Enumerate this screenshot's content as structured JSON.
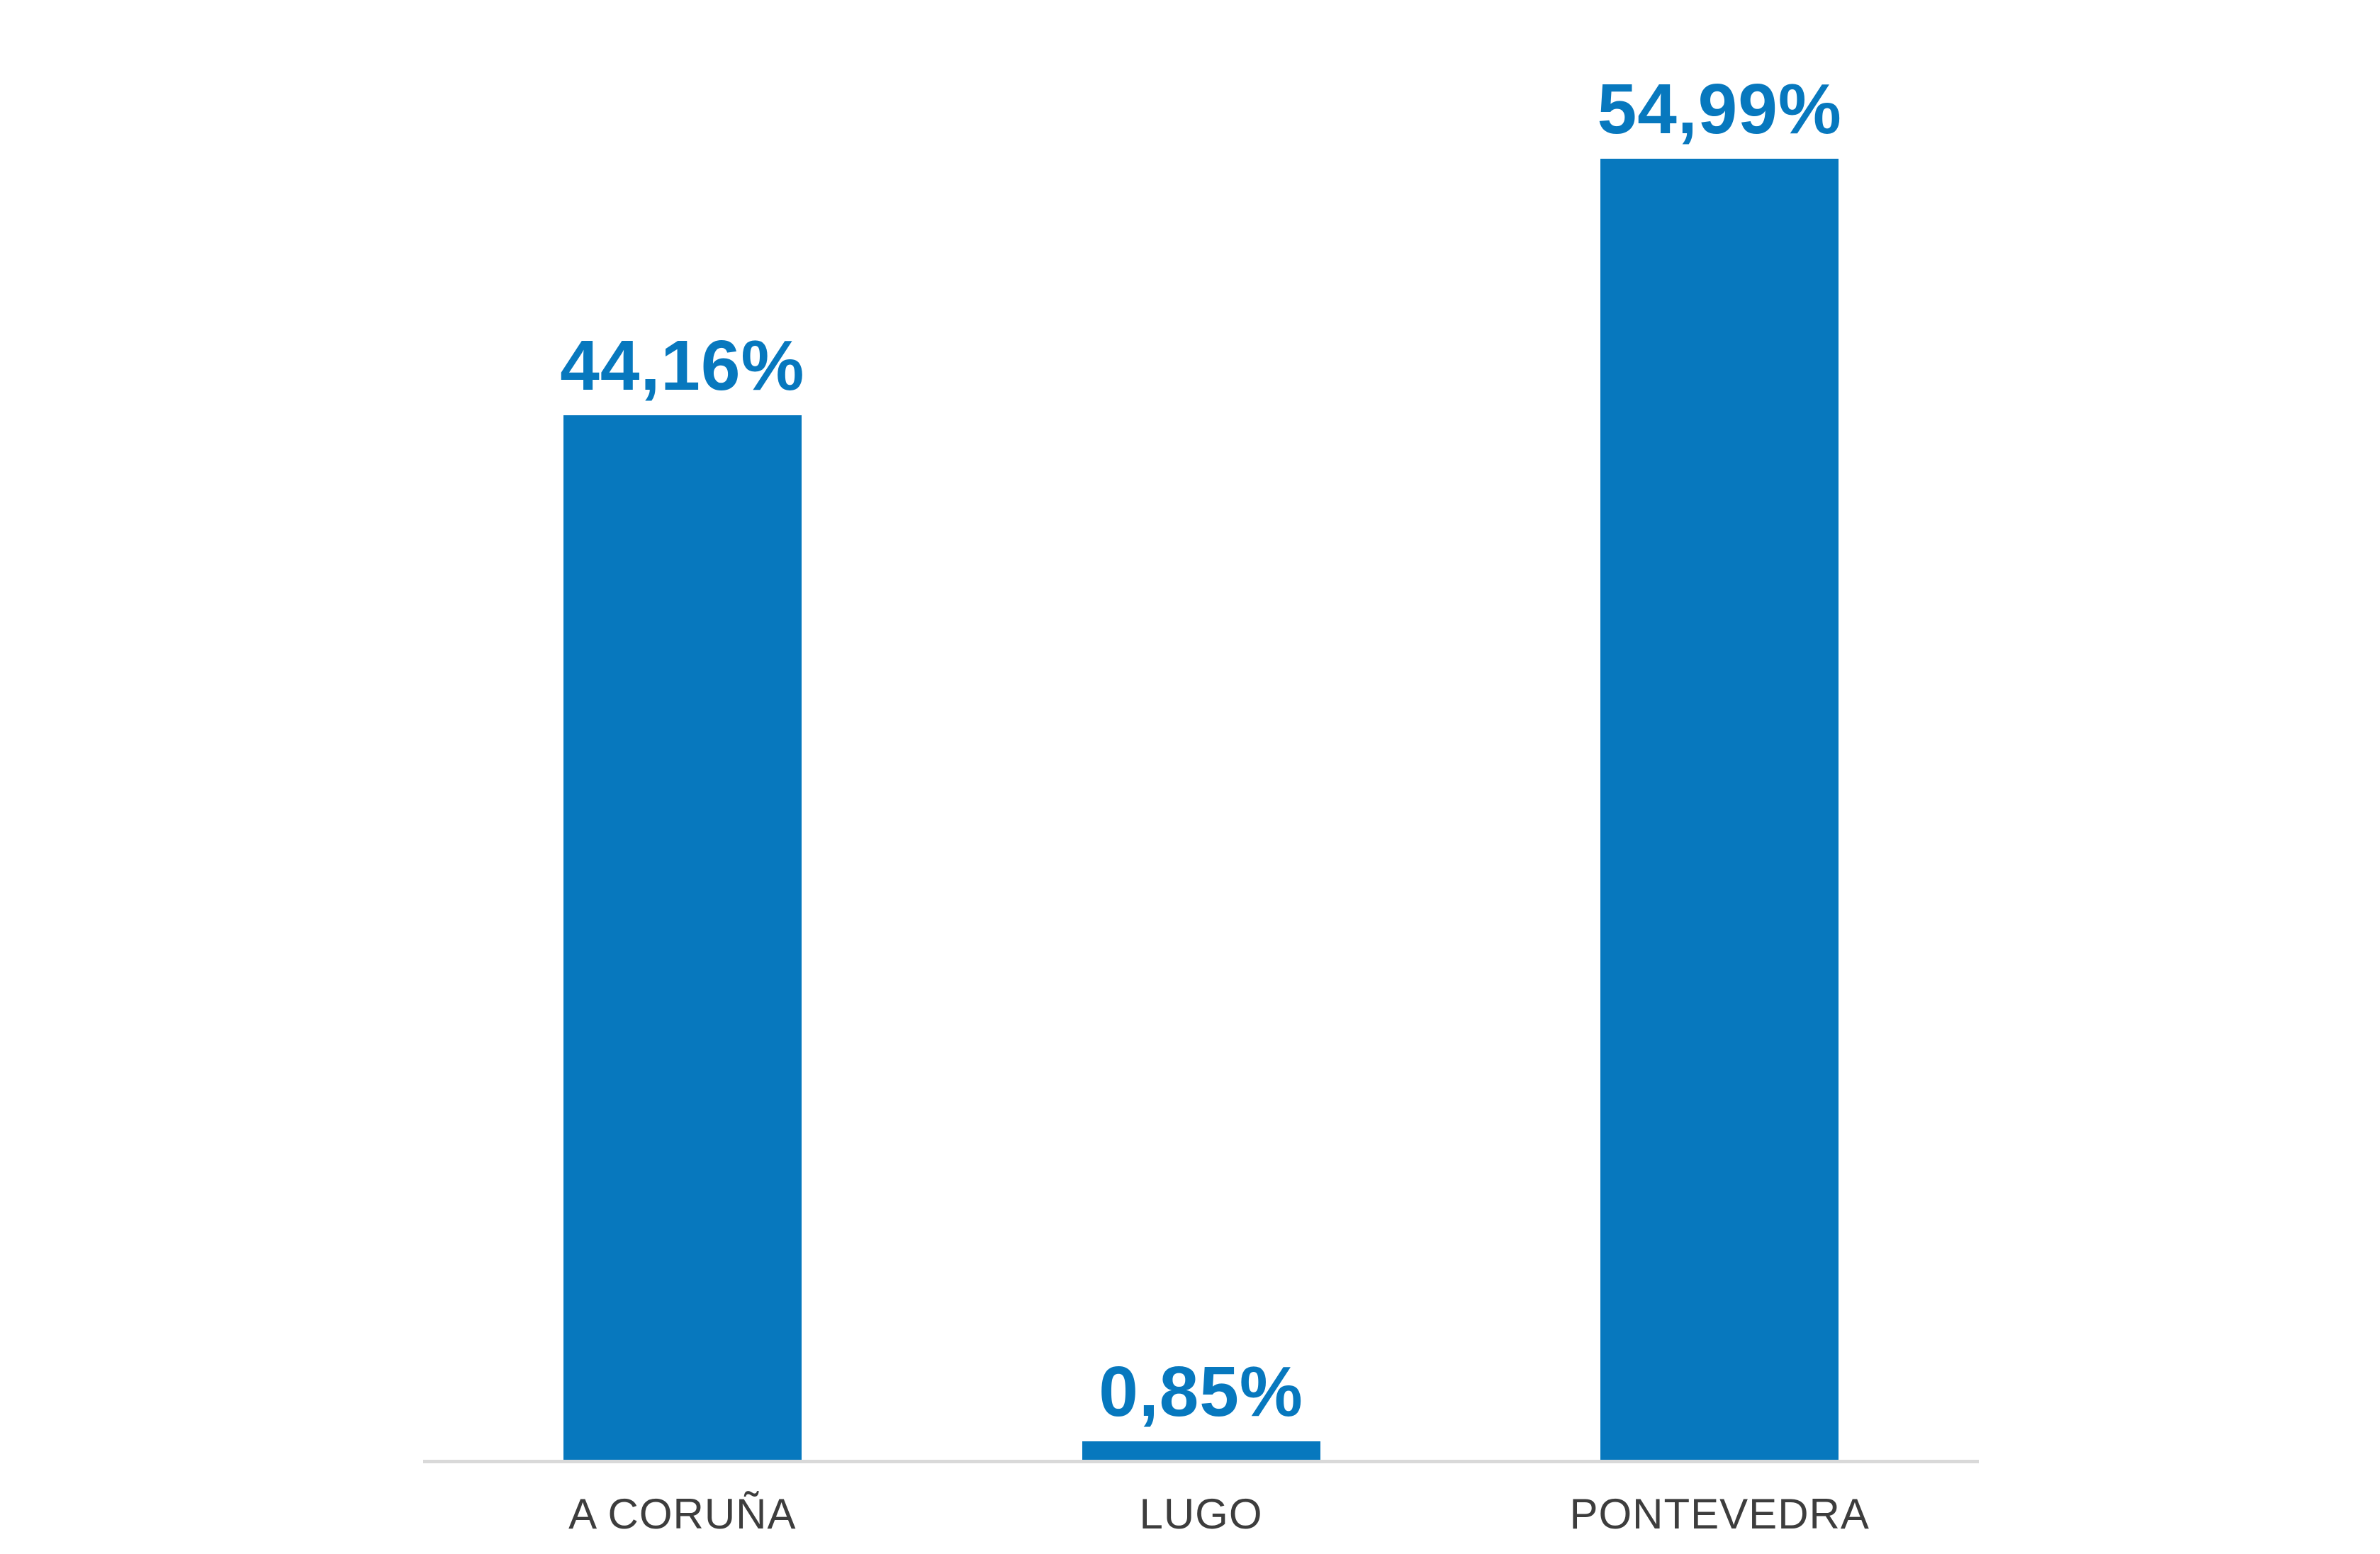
{
  "colors": {
    "bar_color": "#0778BE",
    "value_label_color": "#0778BE",
    "category_label_color": "#3D3D3D",
    "baseline_color": "#D9D9D9",
    "background": "#FFFFFF"
  },
  "chart_data": {
    "type": "bar",
    "title": "",
    "xlabel": "",
    "ylabel": "",
    "categories": [
      "A CORUÑA",
      "LUGO",
      "PONTEVEDRA"
    ],
    "values": [
      44.16,
      0.85,
      54.99
    ],
    "value_labels": [
      "44,16%",
      "0,85%",
      "54,99%"
    ],
    "ylim": [
      0,
      61.7
    ],
    "grid": false,
    "legend": false,
    "y_axis_visible": false,
    "x_baseline_visible": true
  }
}
